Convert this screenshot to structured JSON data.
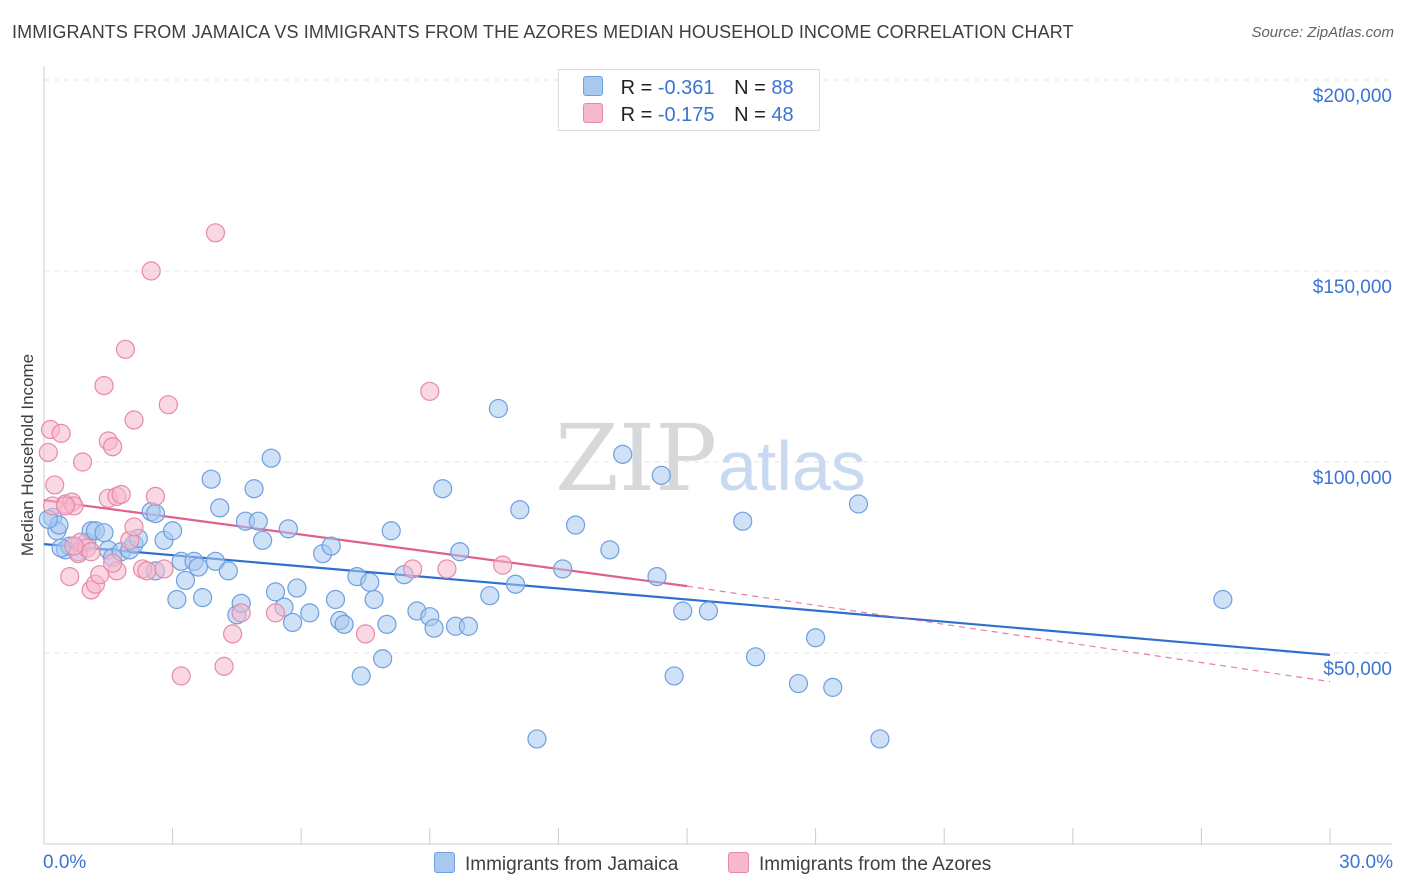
{
  "header": {
    "title": "IMMIGRANTS FROM JAMAICA VS IMMIGRANTS FROM THE AZORES MEDIAN HOUSEHOLD INCOME CORRELATION CHART",
    "source": "Source: ZipAtlas.com"
  },
  "watermark": {
    "zip": "ZIP",
    "atlas": "atlas"
  },
  "legend_stats": {
    "jamaica": {
      "r_label": "R =",
      "r_value": "-0.361",
      "n_label": "N =",
      "n_value": "88"
    },
    "azores": {
      "r_label": "R =",
      "r_value": "-0.175",
      "n_label": "N =",
      "n_value": "48"
    }
  },
  "colors": {
    "jamaica_fill": "#a8c8f0",
    "jamaica_stroke": "#6e9fe0",
    "jamaica_line": "#2f6fd0",
    "azores_fill": "#f6b8cc",
    "azores_stroke": "#e889a8",
    "azores_line": "#e0608e",
    "axis_label": "#3b74d1"
  },
  "chart_data": {
    "type": "scatter",
    "title": "IMMIGRANTS FROM JAMAICA VS IMMIGRANTS FROM THE AZORES MEDIAN HOUSEHOLD INCOME CORRELATION CHART",
    "xlabel": "",
    "ylabel": "Median Household Income",
    "xlim": [
      0,
      30
    ],
    "ylim": [
      0,
      210000
    ],
    "y_ticks": [
      {
        "value": 50000,
        "label": "$50,000"
      },
      {
        "value": 100000,
        "label": "$100,000"
      },
      {
        "value": 150000,
        "label": "$150,000"
      },
      {
        "value": 200000,
        "label": "$200,000"
      }
    ],
    "x_tick_labels": {
      "min": "0.0%",
      "max": "30.0%"
    },
    "x_minor_ticks": [
      3,
      6,
      9,
      12,
      15,
      18,
      21,
      24,
      27,
      30
    ],
    "grid": true,
    "legend_position": "top-center",
    "series": [
      {
        "name": "Immigrants from Jamaica",
        "color": "blue",
        "trend": {
          "x": [
            0,
            30
          ],
          "y": [
            78500,
            49500
          ]
        },
        "points": [
          [
            0.2,
            85500
          ],
          [
            0.3,
            82000
          ],
          [
            0.35,
            83500
          ],
          [
            0.5,
            77000
          ],
          [
            0.6,
            78000
          ],
          [
            0.8,
            76500
          ],
          [
            1.0,
            79000
          ],
          [
            1.1,
            82000
          ],
          [
            1.2,
            82000
          ],
          [
            1.4,
            81500
          ],
          [
            1.5,
            77000
          ],
          [
            1.6,
            75000
          ],
          [
            1.8,
            76500
          ],
          [
            2.0,
            77000
          ],
          [
            2.1,
            78500
          ],
          [
            2.2,
            80000
          ],
          [
            2.5,
            87000
          ],
          [
            2.6,
            86500
          ],
          [
            2.6,
            71500
          ],
          [
            2.8,
            79500
          ],
          [
            3.0,
            82000
          ],
          [
            3.1,
            64000
          ],
          [
            3.2,
            74000
          ],
          [
            3.3,
            69000
          ],
          [
            3.5,
            74000
          ],
          [
            3.6,
            72500
          ],
          [
            3.7,
            64500
          ],
          [
            3.9,
            95500
          ],
          [
            4.0,
            74000
          ],
          [
            4.1,
            88000
          ],
          [
            4.3,
            71500
          ],
          [
            4.5,
            60000
          ],
          [
            4.6,
            63000
          ],
          [
            4.7,
            84500
          ],
          [
            4.9,
            93000
          ],
          [
            5.0,
            84500
          ],
          [
            5.1,
            79500
          ],
          [
            5.3,
            101000
          ],
          [
            5.4,
            66000
          ],
          [
            5.6,
            62000
          ],
          [
            5.7,
            82500
          ],
          [
            5.8,
            58000
          ],
          [
            5.9,
            67000
          ],
          [
            6.2,
            60500
          ],
          [
            6.5,
            76000
          ],
          [
            6.7,
            78000
          ],
          [
            6.8,
            64000
          ],
          [
            6.9,
            58500
          ],
          [
            7.0,
            57500
          ],
          [
            7.3,
            70000
          ],
          [
            7.4,
            44000
          ],
          [
            7.6,
            68500
          ],
          [
            7.7,
            64000
          ],
          [
            7.9,
            48500
          ],
          [
            8.0,
            57500
          ],
          [
            8.1,
            82000
          ],
          [
            8.4,
            70500
          ],
          [
            8.7,
            61000
          ],
          [
            9.0,
            59500
          ],
          [
            9.1,
            56500
          ],
          [
            9.3,
            93000
          ],
          [
            9.6,
            57000
          ],
          [
            9.9,
            57000
          ],
          [
            9.7,
            76500
          ],
          [
            10.4,
            65000
          ],
          [
            10.6,
            114000
          ],
          [
            11.0,
            68000
          ],
          [
            11.1,
            87500
          ],
          [
            11.5,
            27500
          ],
          [
            12.1,
            72000
          ],
          [
            12.4,
            83500
          ],
          [
            13.2,
            77000
          ],
          [
            13.5,
            102000
          ],
          [
            14.3,
            70000
          ],
          [
            14.4,
            96500
          ],
          [
            14.7,
            44000
          ],
          [
            14.9,
            61000
          ],
          [
            15.5,
            61000
          ],
          [
            16.3,
            84500
          ],
          [
            16.6,
            49000
          ],
          [
            17.6,
            42000
          ],
          [
            18.0,
            54000
          ],
          [
            18.4,
            41000
          ],
          [
            19.0,
            89000
          ],
          [
            19.5,
            27500
          ],
          [
            27.5,
            64000
          ],
          [
            0.1,
            85000
          ],
          [
            0.4,
            77500
          ]
        ]
      },
      {
        "name": "Immigrants from the Azores",
        "color": "pink",
        "trend": {
          "x": [
            0,
            15
          ],
          "y": [
            90000,
            67500
          ]
        },
        "trend_extension": {
          "x": [
            15,
            30
          ],
          "y": [
            67500,
            42500
          ]
        },
        "points": [
          [
            0.1,
            102500
          ],
          [
            0.15,
            108500
          ],
          [
            0.2,
            88500
          ],
          [
            0.25,
            94000
          ],
          [
            0.4,
            107500
          ],
          [
            0.5,
            89000
          ],
          [
            0.6,
            70000
          ],
          [
            0.65,
            89500
          ],
          [
            0.7,
            88500
          ],
          [
            0.8,
            76000
          ],
          [
            0.85,
            79000
          ],
          [
            0.9,
            100000
          ],
          [
            1.0,
            77500
          ],
          [
            1.1,
            66500
          ],
          [
            1.1,
            76500
          ],
          [
            1.2,
            68000
          ],
          [
            1.3,
            70500
          ],
          [
            1.4,
            120000
          ],
          [
            1.5,
            90500
          ],
          [
            1.5,
            105500
          ],
          [
            1.6,
            104000
          ],
          [
            1.7,
            71500
          ],
          [
            1.7,
            91000
          ],
          [
            1.8,
            91500
          ],
          [
            1.9,
            129500
          ],
          [
            2.0,
            79500
          ],
          [
            2.1,
            83000
          ],
          [
            2.1,
            111000
          ],
          [
            2.3,
            72000
          ],
          [
            2.4,
            71500
          ],
          [
            2.5,
            150000
          ],
          [
            2.6,
            91000
          ],
          [
            2.8,
            72000
          ],
          [
            2.9,
            115000
          ],
          [
            3.2,
            44000
          ],
          [
            4.0,
            160000
          ],
          [
            4.2,
            46500
          ],
          [
            4.4,
            55000
          ],
          [
            4.6,
            60500
          ],
          [
            5.4,
            60500
          ],
          [
            7.5,
            55000
          ],
          [
            8.6,
            72000
          ],
          [
            9.0,
            118500
          ],
          [
            9.4,
            72000
          ],
          [
            10.7,
            73000
          ],
          [
            0.5,
            88500
          ],
          [
            0.7,
            78000
          ],
          [
            1.6,
            73500
          ]
        ]
      }
    ]
  },
  "bottom_legend": {
    "jamaica_label": "Immigrants from Jamaica",
    "azores_label": "Immigrants from the Azores"
  }
}
